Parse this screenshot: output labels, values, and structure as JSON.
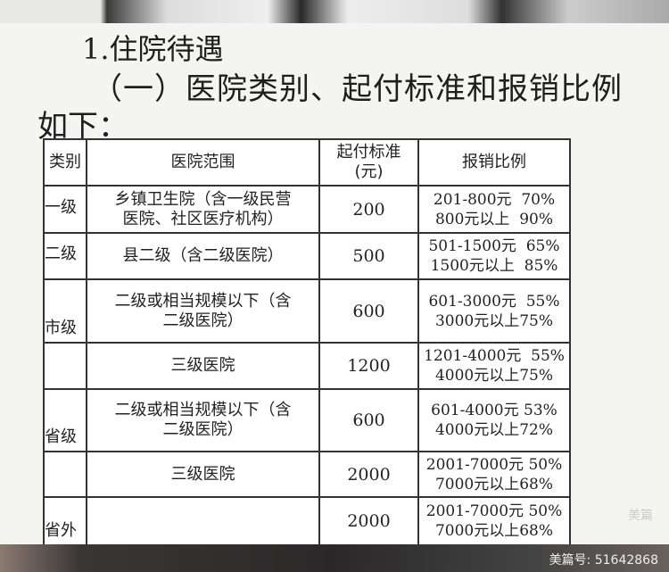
{
  "heading1": "1.住院待遇",
  "heading2": "（一）医院类别、起付标准和报销比例",
  "heading3": "如下：",
  "table": {
    "headers": [
      "类别",
      "医院范围",
      "起付标准\n(元)",
      "报销比例"
    ],
    "header_threshold_line1": "起付标准",
    "header_threshold_line2": "(元)",
    "rows": [
      {
        "category": "一级",
        "scope": [
          "乡镇卫生院（含一级民营",
          "医院、社区医疗机构）"
        ],
        "threshold": "200",
        "rates": [
          "201-800元  70%",
          "800元以上  90%"
        ]
      },
      {
        "category": "二级",
        "scope": [
          "县二级（含二级医院）"
        ],
        "threshold": "500",
        "rates": [
          "501-1500元  65%",
          "1500元以上  85%"
        ]
      },
      {
        "category": "市级",
        "scope": [
          "二级或相当规模以下（含",
          "二级医院）"
        ],
        "threshold": "600",
        "rates": [
          "601-3000元  55%",
          "3000元以上75%"
        ]
      },
      {
        "category": "",
        "scope": [
          "三级医院"
        ],
        "threshold": "1200",
        "rates": [
          "1201-4000元  55%",
          "4000元以上75%"
        ]
      },
      {
        "category": "省级",
        "scope": [
          "二级或相当规模以下（含",
          "二级医院）"
        ],
        "threshold": "600",
        "rates": [
          "601-4000元 53%",
          "4000元以上72%"
        ]
      },
      {
        "category": "",
        "scope": [
          "三级医院"
        ],
        "threshold": "2000",
        "rates": [
          "2001-7000元 50%",
          "7000元以上68%"
        ]
      },
      {
        "category": "省外",
        "scope": [
          ""
        ],
        "threshold": "2000",
        "rates": [
          "2001-7000元 50%",
          "7000元以上68%"
        ]
      }
    ]
  },
  "watermark": "美篇",
  "footer_id": "美篇号: 51642868"
}
